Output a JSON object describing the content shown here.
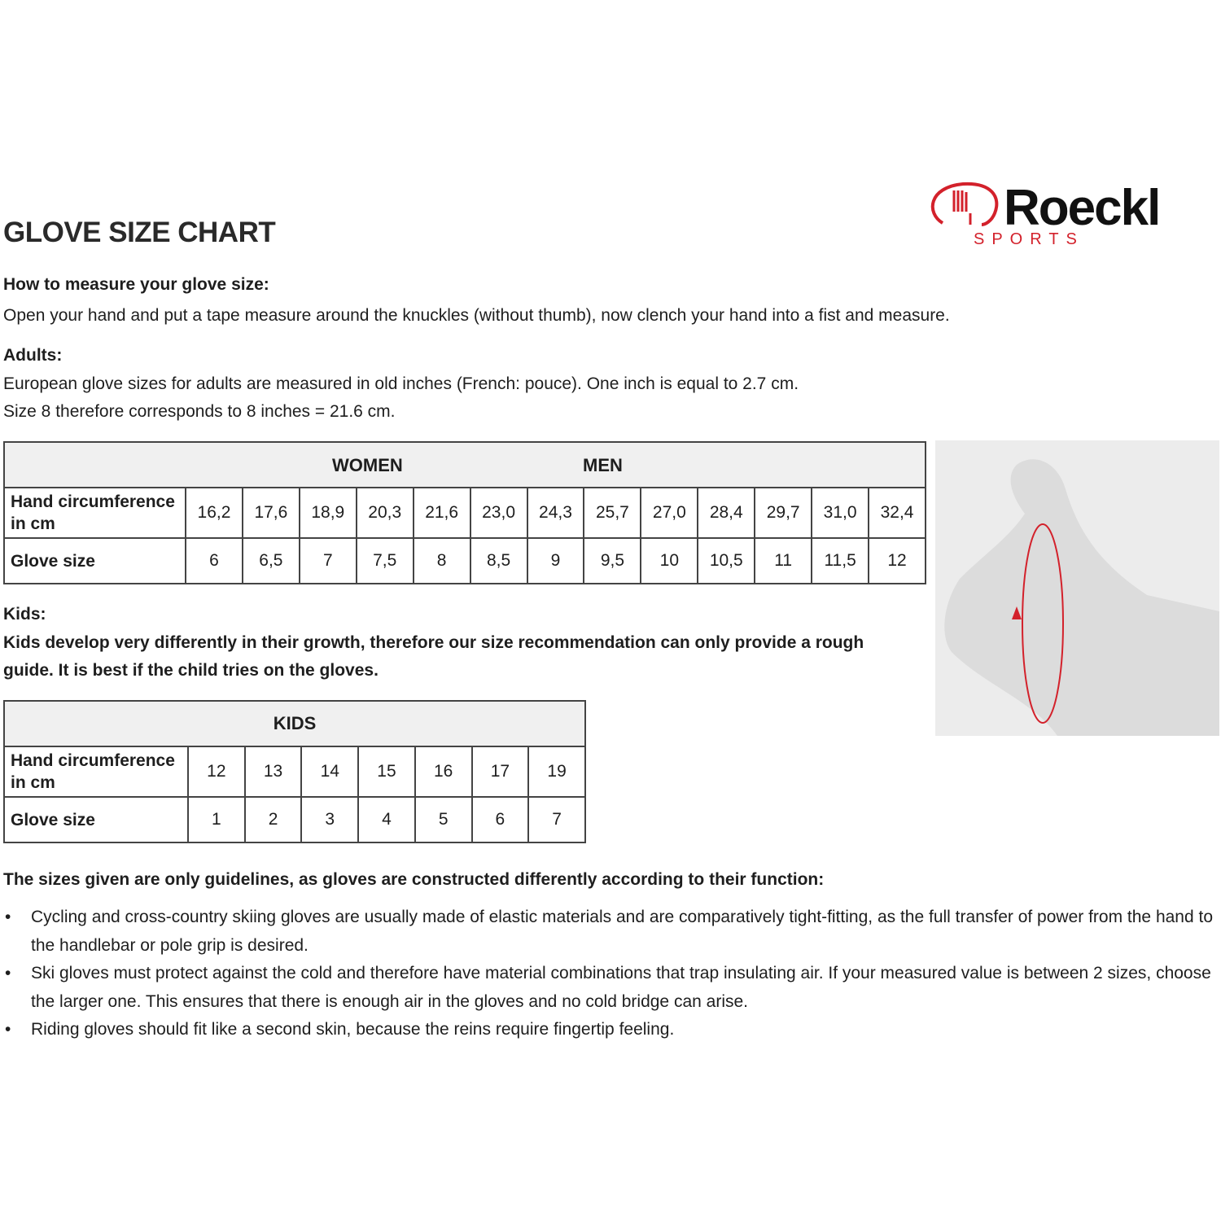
{
  "logo": {
    "brand": "Roeckl",
    "sub": "SPORTS",
    "color": "#d3212b"
  },
  "title": "GLOVE SIZE CHART",
  "measure": {
    "heading": "How to measure your glove size:",
    "text": "Open your hand and put a tape measure around the knuckles (without thumb), now clench your hand into a fist and measure."
  },
  "adults": {
    "heading": "Adults:",
    "line1": "European glove sizes for adults are measured in old inches (French: pouce). One inch is equal to 2.7 cm.",
    "line2": "Size 8 therefore corresponds to 8 inches = 21.6 cm."
  },
  "adult_table": {
    "women": "WOMEN",
    "men": "MEN",
    "row1_label": "Hand circumference in cm",
    "row2_label": "Glove size",
    "circumference": [
      "16,2",
      "17,6",
      "18,9",
      "20,3",
      "21,6",
      "23,0",
      "24,3",
      "25,7",
      "27,0",
      "28,4",
      "29,7",
      "31,0",
      "32,4"
    ],
    "sizes": [
      "6",
      "6,5",
      "7",
      "7,5",
      "8",
      "8,5",
      "9",
      "9,5",
      "10",
      "10,5",
      "11",
      "11,5",
      "12"
    ]
  },
  "kids": {
    "heading": "Kids:",
    "line1": "Kids develop very differently in their growth, therefore our size recommendation can only provide a rough",
    "line2": "guide. It is best if the child tries on the gloves."
  },
  "kids_table": {
    "title": "KIDS",
    "row1_label": "Hand circumference in cm",
    "row2_label": "Glove size",
    "circumference": [
      "12",
      "13",
      "14",
      "15",
      "16",
      "17",
      "19"
    ],
    "sizes": [
      "1",
      "2",
      "3",
      "4",
      "5",
      "6",
      "7"
    ]
  },
  "notes": {
    "heading": "The sizes given are only guidelines, as gloves are constructed differently according to their function:",
    "items": [
      "Cycling and cross-country skiing gloves are usually made of elastic materials and are comparatively tight-fitting, as the full transfer of power from the hand to the handlebar or pole grip is desired.",
      "Ski gloves must protect against the cold and therefore have material combinations that trap insulating air. If your measured value is between 2 sizes, choose the larger one. This ensures that there is enough air in the gloves and no cold bridge can arise.",
      "Riding gloves should fit like a second skin, because the reins require fingertip feeling."
    ]
  }
}
